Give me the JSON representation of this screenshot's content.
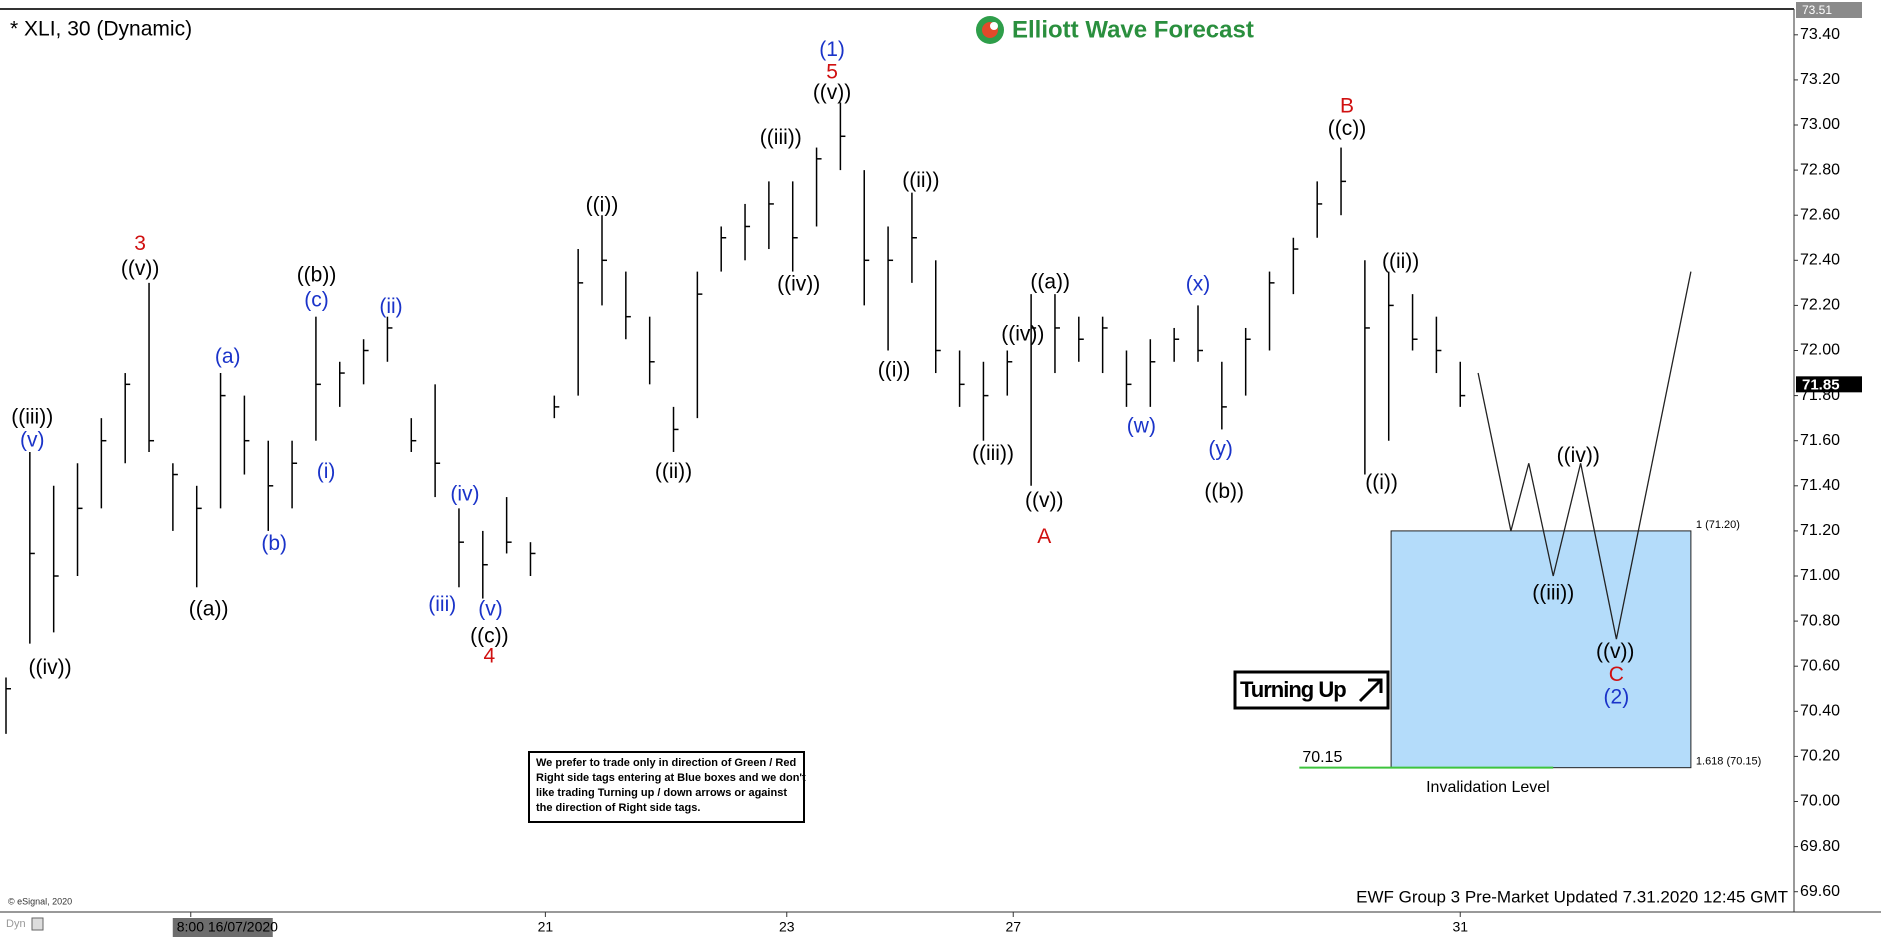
{
  "chart_data": {
    "type": "ohlc",
    "title": "* XLI, 30 (Dynamic)",
    "logo": "Elliott Wave Forecast",
    "footer": "EWF Group 3 Pre-Market Updated 7.31.2020 12:45 GMT",
    "copyright": "© eSignal, 2020",
    "mode_label": "Dyn",
    "badge": "Turning Up",
    "note": [
      "We prefer to trade only in direction of Green / Red",
      "Right side tags entering at Blue boxes and we don't",
      "like trading Turning up / down arrows or against",
      "the direction of Right side tags."
    ],
    "color": "#000000",
    "xlim": [
      0,
      300
    ],
    "ylim": [
      69.51,
      73.51
    ],
    "grid": false,
    "xticks": [
      {
        "value": 31,
        "label": "8:00 16/07/2020"
      },
      {
        "value": 90.5,
        "label": "21"
      },
      {
        "value": 131,
        "label": "23"
      },
      {
        "value": 169,
        "label": "27"
      },
      {
        "value": 244,
        "label": "31"
      }
    ],
    "yticks": [
      {
        "value": 73.4,
        "label": "73.40"
      },
      {
        "value": 73.2,
        "label": "73.20"
      },
      {
        "value": 73.0,
        "label": "73.00"
      },
      {
        "value": 72.8,
        "label": "72.80"
      },
      {
        "value": 72.6,
        "label": "72.60"
      },
      {
        "value": 72.4,
        "label": "72.40"
      },
      {
        "value": 72.2,
        "label": "72.20"
      },
      {
        "value": 72.0,
        "label": "72.00"
      },
      {
        "value": 71.8,
        "label": "71.80"
      },
      {
        "value": 71.6,
        "label": "71.60"
      },
      {
        "value": 71.4,
        "label": "71.40"
      },
      {
        "value": 71.2,
        "label": "71.20"
      },
      {
        "value": 71.0,
        "label": "71.00"
      },
      {
        "value": 70.8,
        "label": "70.80"
      },
      {
        "value": 70.6,
        "label": "70.60"
      },
      {
        "value": 70.4,
        "label": "70.40"
      },
      {
        "value": 70.2,
        "label": "70.20"
      },
      {
        "value": 70.0,
        "label": "70.00"
      },
      {
        "value": 69.8,
        "label": "69.80"
      },
      {
        "value": 69.6,
        "label": "69.60"
      }
    ],
    "x": [
      0,
      4,
      8,
      12,
      16,
      20,
      24,
      28,
      32,
      36,
      40,
      44,
      48,
      52,
      56,
      60,
      64,
      68,
      72,
      76,
      80,
      84,
      88,
      92,
      96,
      100,
      104,
      108,
      112,
      116,
      120,
      124,
      128,
      132,
      136,
      140,
      144,
      148,
      152,
      156,
      160,
      164,
      168,
      172,
      176,
      180,
      184,
      188,
      192,
      196,
      200,
      204,
      208,
      212,
      216,
      220,
      224,
      228,
      232,
      236,
      240,
      244
    ],
    "high": [
      70.55,
      71.55,
      71.4,
      71.5,
      71.7,
      71.9,
      72.3,
      71.5,
      71.4,
      71.9,
      71.8,
      71.6,
      71.6,
      72.15,
      71.95,
      72.05,
      72.15,
      71.7,
      71.85,
      71.3,
      71.2,
      71.35,
      71.15,
      71.8,
      72.45,
      72.6,
      72.35,
      72.15,
      71.75,
      72.35,
      72.55,
      72.65,
      72.75,
      72.75,
      72.9,
      73.1,
      72.8,
      72.55,
      72.7,
      72.4,
      72.0,
      71.95,
      72.0,
      72.25,
      72.25,
      72.15,
      72.15,
      72.0,
      72.05,
      72.1,
      72.2,
      71.95,
      72.1,
      72.35,
      72.5,
      72.75,
      72.9,
      72.4,
      72.35,
      72.25,
      72.15,
      71.95
    ],
    "low": [
      70.3,
      70.7,
      70.75,
      71.0,
      71.3,
      71.5,
      71.55,
      71.2,
      70.95,
      71.3,
      71.45,
      71.2,
      71.3,
      71.6,
      71.75,
      71.85,
      71.95,
      71.55,
      71.35,
      70.95,
      70.9,
      71.1,
      71.0,
      71.7,
      71.8,
      72.2,
      72.05,
      71.85,
      71.55,
      71.7,
      72.35,
      72.4,
      72.45,
      72.35,
      72.55,
      72.8,
      72.2,
      72.0,
      72.3,
      71.9,
      71.75,
      71.6,
      71.8,
      71.4,
      71.9,
      71.95,
      71.9,
      71.75,
      71.75,
      71.95,
      71.95,
      71.65,
      71.8,
      72.0,
      72.25,
      72.5,
      72.6,
      71.45,
      71.6,
      72.0,
      71.9,
      71.75
    ],
    "close": [
      70.5,
      71.1,
      71.0,
      71.3,
      71.6,
      71.85,
      71.6,
      71.45,
      71.3,
      71.8,
      71.6,
      71.4,
      71.5,
      71.85,
      71.9,
      72.0,
      72.1,
      71.6,
      71.5,
      71.15,
      71.05,
      71.15,
      71.1,
      71.75,
      72.3,
      72.4,
      72.15,
      71.95,
      71.65,
      72.25,
      72.5,
      72.55,
      72.65,
      72.5,
      72.85,
      72.95,
      72.4,
      72.4,
      72.5,
      72.0,
      71.85,
      71.8,
      71.95,
      72.1,
      72.1,
      72.05,
      72.1,
      71.85,
      71.95,
      72.05,
      72.0,
      71.75,
      72.05,
      72.3,
      72.45,
      72.65,
      72.75,
      72.1,
      72.2,
      72.05,
      72.0,
      71.8
    ],
    "projection": {
      "x": [
        247,
        252.5,
        255.5,
        259.6,
        264.2,
        270.2,
        282.7
      ],
      "y": [
        71.9,
        71.2,
        71.5,
        71.0,
        71.5,
        70.72,
        72.35
      ]
    },
    "target_box": {
      "x": [
        232.4,
        282.7
      ],
      "top": 71.2,
      "bottom": 70.15,
      "top_label": "1 (71.20)",
      "bottom_label": "1.618 (70.15)",
      "color": "#b4dcfa"
    },
    "invalidation": {
      "x": [
        217,
        259.6
      ],
      "value": 70.15,
      "label": "70.15",
      "text": "Invalidation Level",
      "color": "#3ec43e"
    },
    "price_markers": [
      {
        "value": 73.51,
        "label": "73.51"
      },
      {
        "value": 71.85,
        "label": "71.85"
      }
    ],
    "annotations": [
      {
        "text": "3",
        "x": 22.5,
        "y": 72.47,
        "color": "#d01010"
      },
      {
        "text": "((v))",
        "x": 22.5,
        "y": 72.36,
        "color": "#000000"
      },
      {
        "text": "((iii))",
        "x": 4.4,
        "y": 71.7,
        "color": "#000000"
      },
      {
        "text": "(v)",
        "x": 4.4,
        "y": 71.6,
        "color": "#1a33c9"
      },
      {
        "text": "((iv))",
        "x": 7.4,
        "y": 70.59,
        "color": "#000000"
      },
      {
        "text": "((a))",
        "x": 34,
        "y": 70.85,
        "color": "#000000"
      },
      {
        "text": "(a)",
        "x": 37.2,
        "y": 71.97,
        "color": "#1a33c9"
      },
      {
        "text": "(b)",
        "x": 45,
        "y": 71.14,
        "color": "#1a33c9"
      },
      {
        "text": "((b))",
        "x": 52.1,
        "y": 72.33,
        "color": "#000000"
      },
      {
        "text": "(c)",
        "x": 52.1,
        "y": 72.22,
        "color": "#1a33c9"
      },
      {
        "text": "(i)",
        "x": 53.7,
        "y": 71.46,
        "color": "#1a33c9"
      },
      {
        "text": "(ii)",
        "x": 64.6,
        "y": 72.19,
        "color": "#1a33c9"
      },
      {
        "text": "(iv)",
        "x": 77,
        "y": 71.36,
        "color": "#1a33c9"
      },
      {
        "text": "(iii)",
        "x": 73.2,
        "y": 70.87,
        "color": "#1a33c9"
      },
      {
        "text": "(v)",
        "x": 81.3,
        "y": 70.85,
        "color": "#1a33c9"
      },
      {
        "text": "((c))",
        "x": 81.1,
        "y": 70.73,
        "color": "#000000"
      },
      {
        "text": "4",
        "x": 81.1,
        "y": 70.64,
        "color": "#d01010"
      },
      {
        "text": "((i))",
        "x": 100,
        "y": 72.64,
        "color": "#000000"
      },
      {
        "text": "((ii))",
        "x": 112,
        "y": 71.46,
        "color": "#000000"
      },
      {
        "text": "((iii))",
        "x": 130,
        "y": 72.94,
        "color": "#000000"
      },
      {
        "text": "((iv))",
        "x": 133,
        "y": 72.29,
        "color": "#000000"
      },
      {
        "text": "(1)",
        "x": 138.6,
        "y": 73.33,
        "color": "#1a33c9"
      },
      {
        "text": "5",
        "x": 138.6,
        "y": 73.23,
        "color": "#d01010"
      },
      {
        "text": "((v))",
        "x": 138.6,
        "y": 73.14,
        "color": "#000000"
      },
      {
        "text": "((ii))",
        "x": 153.5,
        "y": 72.75,
        "color": "#000000"
      },
      {
        "text": "((i))",
        "x": 149,
        "y": 71.91,
        "color": "#000000"
      },
      {
        "text": "((iii))",
        "x": 165.6,
        "y": 71.54,
        "color": "#000000"
      },
      {
        "text": "((iv))",
        "x": 170.6,
        "y": 72.07,
        "color": "#000000"
      },
      {
        "text": "((a))",
        "x": 175.2,
        "y": 72.3,
        "color": "#000000"
      },
      {
        "text": "((v))",
        "x": 174.2,
        "y": 71.33,
        "color": "#000000"
      },
      {
        "text": "A",
        "x": 174.2,
        "y": 71.17,
        "color": "#d01010"
      },
      {
        "text": "(w)",
        "x": 190.5,
        "y": 71.66,
        "color": "#1a33c9"
      },
      {
        "text": "(x)",
        "x": 200,
        "y": 72.29,
        "color": "#1a33c9"
      },
      {
        "text": "(y)",
        "x": 203.8,
        "y": 71.56,
        "color": "#1a33c9"
      },
      {
        "text": "((b))",
        "x": 204.4,
        "y": 71.37,
        "color": "#000000"
      },
      {
        "text": "B",
        "x": 225,
        "y": 73.08,
        "color": "#d01010"
      },
      {
        "text": "((c))",
        "x": 225,
        "y": 72.98,
        "color": "#000000"
      },
      {
        "text": "((ii))",
        "x": 234,
        "y": 72.39,
        "color": "#000000"
      },
      {
        "text": "((i))",
        "x": 230.8,
        "y": 71.41,
        "color": "#000000"
      },
      {
        "text": "((iv))",
        "x": 263.8,
        "y": 71.53,
        "color": "#000000"
      },
      {
        "text": "((iii))",
        "x": 259.6,
        "y": 70.92,
        "color": "#000000"
      },
      {
        "text": "((v))",
        "x": 270,
        "y": 70.66,
        "color": "#000000"
      },
      {
        "text": "C",
        "x": 270.2,
        "y": 70.56,
        "color": "#d01010"
      },
      {
        "text": "(2)",
        "x": 270.2,
        "y": 70.46,
        "color": "#1a33c9"
      }
    ]
  }
}
